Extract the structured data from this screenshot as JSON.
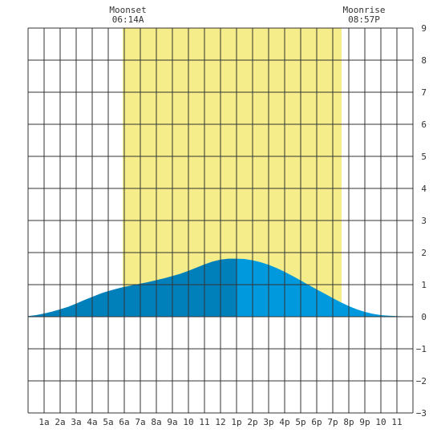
{
  "chart_data": {
    "type": "area",
    "x_range": [
      0,
      24
    ],
    "ylim": [
      -3,
      9
    ],
    "y_ticks": [
      -3,
      -2,
      -1,
      0,
      1,
      2,
      3,
      4,
      5,
      6,
      7,
      8,
      9
    ],
    "x_tick_labels": [
      "1a",
      "2a",
      "3a",
      "4a",
      "5a",
      "6a",
      "7a",
      "8a",
      "9a",
      "10",
      "11",
      "12",
      "1p",
      "2p",
      "3p",
      "4p",
      "5p",
      "6p",
      "7p",
      "8p",
      "9p",
      "10",
      "11"
    ],
    "daylight": {
      "start_hour": 5.9,
      "end_hour": 19.55
    },
    "moonset": {
      "label": "Moonset",
      "time": "06:14A"
    },
    "moonrise": {
      "label": "Moonrise",
      "time": "08:57P"
    },
    "tide_peak_hour": 13,
    "x": [
      0,
      0.5,
      1,
      1.5,
      2,
      2.5,
      3,
      3.5,
      4,
      4.5,
      5,
      5.5,
      6,
      6.5,
      7,
      7.5,
      8,
      8.5,
      9,
      9.5,
      10,
      10.5,
      11,
      11.5,
      12,
      12.5,
      13,
      13.5,
      14,
      14.5,
      15,
      15.5,
      16,
      16.5,
      17,
      17.5,
      18,
      18.5,
      19,
      19.5,
      20,
      20.5,
      21,
      21.5,
      22,
      22.5,
      23,
      23.5,
      24
    ],
    "values": [
      0.02,
      0.05,
      0.1,
      0.16,
      0.23,
      0.31,
      0.41,
      0.52,
      0.62,
      0.72,
      0.8,
      0.87,
      0.93,
      0.98,
      1.03,
      1.08,
      1.14,
      1.2,
      1.27,
      1.34,
      1.43,
      1.53,
      1.63,
      1.72,
      1.78,
      1.81,
      1.81,
      1.8,
      1.76,
      1.7,
      1.62,
      1.52,
      1.4,
      1.27,
      1.13,
      0.99,
      0.85,
      0.72,
      0.58,
      0.45,
      0.33,
      0.23,
      0.15,
      0.09,
      0.05,
      0.03,
      0.02,
      0.01,
      0.0
    ],
    "colors": {
      "daylight": "#f5ed8a",
      "tide_before_peak": "#0080bb",
      "tide_after_peak": "#0099dd",
      "grid": "#333333",
      "background": "#ffffff"
    }
  }
}
